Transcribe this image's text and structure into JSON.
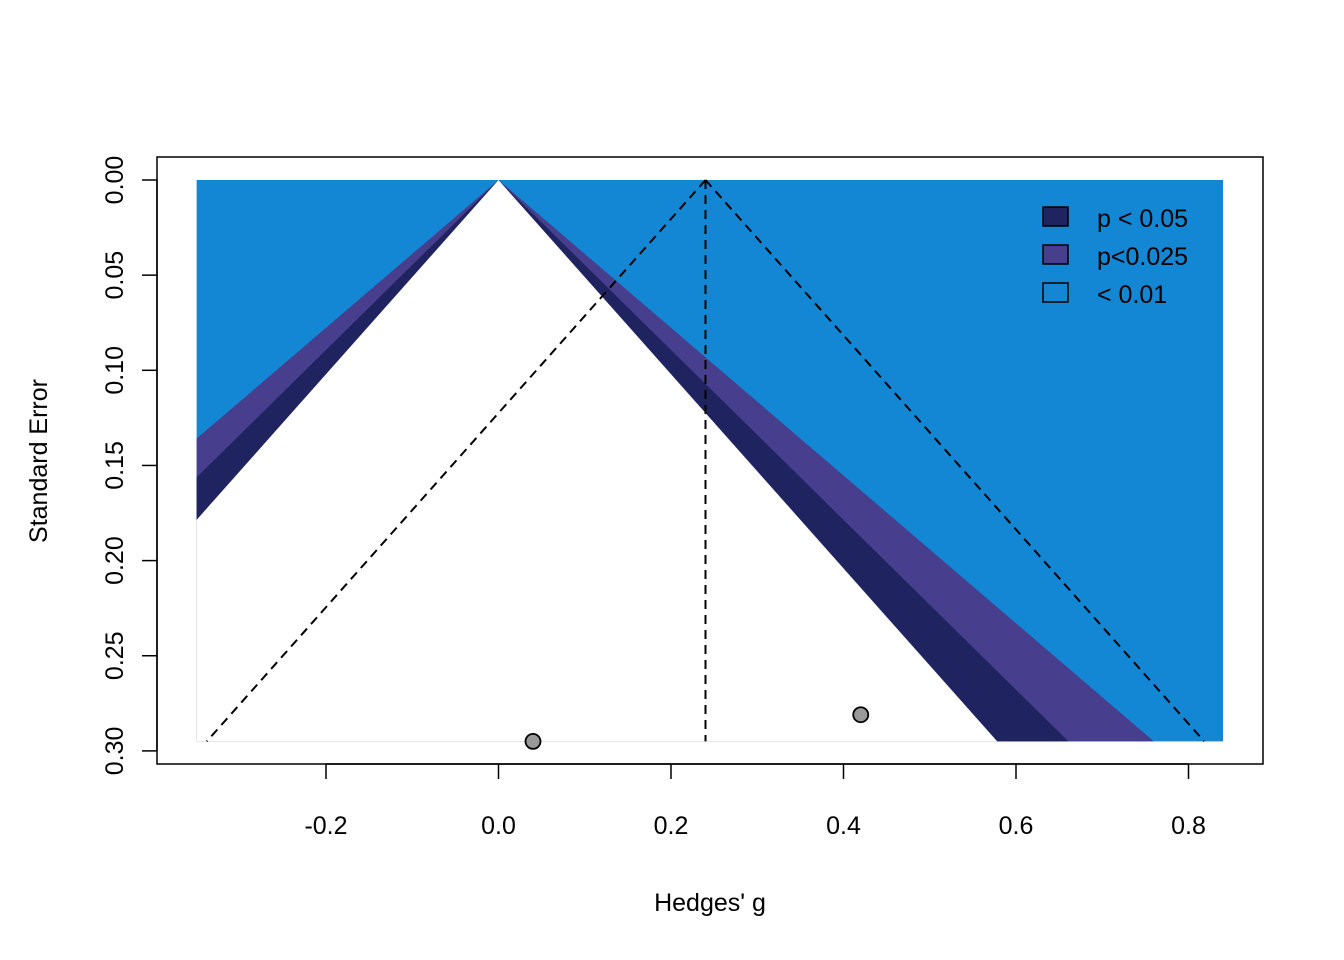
{
  "chart_data": {
    "type": "scatter",
    "subtype": "contour-enhanced funnel plot",
    "xlabel": "Hedges' g",
    "ylabel": "Standard Error",
    "xlim": [
      -0.35,
      0.84
    ],
    "ylim": [
      0.3,
      0.0
    ],
    "y_axis_reversed": true,
    "xticks": [
      -0.2,
      0.0,
      0.2,
      0.4,
      0.6,
      0.8
    ],
    "xtick_labels": [
      "-0.2",
      "0.0",
      "0.2",
      "0.4",
      "0.6",
      "0.8"
    ],
    "yticks": [
      0.0,
      0.05,
      0.1,
      0.15,
      0.2,
      0.25,
      0.3
    ],
    "ytick_labels": [
      "0.00",
      "0.05",
      "0.10",
      "0.15",
      "0.20",
      "0.25",
      "0.30"
    ],
    "se_max": 0.295,
    "contour_center": 0.0,
    "summary_estimate": 0.24,
    "funnel_z": 1.96,
    "contours": [
      {
        "label": "p < 0.05",
        "z": 1.96,
        "color": "#1F2461"
      },
      {
        "label": "p<0.025",
        "z": 2.24,
        "color": "#473F8E"
      },
      {
        "label": "< 0.01",
        "z": 2.576,
        "color": "#1387D3"
      }
    ],
    "legend_position": "top-right",
    "points": [
      {
        "x": 0.04,
        "y": 0.295
      },
      {
        "x": 0.42,
        "y": 0.281
      }
    ],
    "point_color": "#999999"
  }
}
